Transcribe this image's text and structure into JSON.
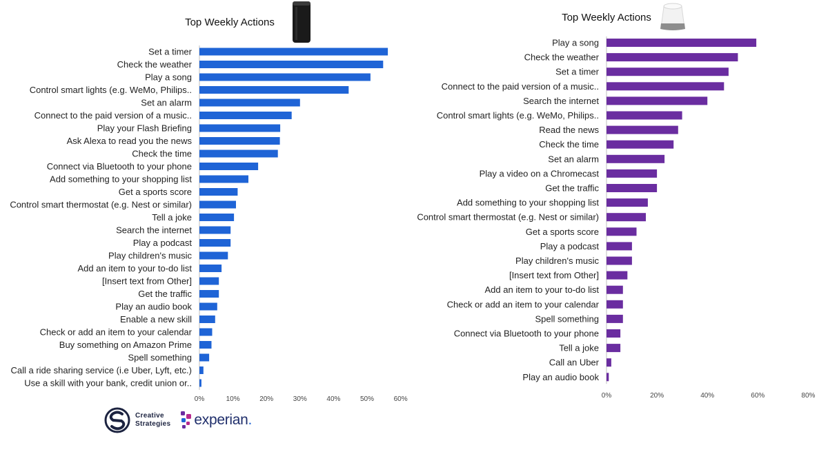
{
  "chart_data": [
    {
      "type": "bar",
      "orientation": "horizontal",
      "title": "Top Weekly Actions",
      "device_icon": "amazon-echo-icon",
      "color": "#1f64d6",
      "xlim": [
        0,
        60
      ],
      "ticks": [
        "0%",
        "10%",
        "20%",
        "30%",
        "40%",
        "50%",
        "60%"
      ],
      "tick_values": [
        0,
        10,
        20,
        30,
        40,
        50,
        60
      ],
      "categories": [
        "Set a timer",
        "Check the weather",
        "Play a song",
        "Control smart lights (e.g. WeMo, Philips..",
        "Set an alarm",
        "Connect to the paid version of a music..",
        "Play your Flash Briefing",
        "Ask Alexa to read you the news",
        "Check the time",
        "Connect via Bluetooth to your phone",
        "Add something to your shopping list",
        "Get a sports score",
        "Control smart thermostat (e.g. Nest or similar)",
        "Tell a joke",
        "Search the internet",
        "Play a podcast",
        "Play children's music",
        "Add an item to your to-do list",
        "[Insert text from Other]",
        "Get the traffic",
        "Play an audio book",
        "Enable a new skill",
        "Check or add an item to your calendar",
        "Buy something on Amazon Prime",
        "Spell something",
        "Call a ride sharing service (i.e Uber, Lyft, etc.)",
        "Use a skill with your bank, credit union or.."
      ],
      "values": [
        56.2,
        54.8,
        51.0,
        44.5,
        30.0,
        27.5,
        24.1,
        24.0,
        23.4,
        17.5,
        14.6,
        11.4,
        10.9,
        10.3,
        9.3,
        9.3,
        8.5,
        6.6,
        5.8,
        5.8,
        5.3,
        4.7,
        3.8,
        3.6,
        2.9,
        1.2,
        0.6
      ]
    },
    {
      "type": "bar",
      "orientation": "horizontal",
      "title": "Top Weekly Actions",
      "device_icon": "google-home-icon",
      "color": "#6a2da0",
      "xlim": [
        0,
        80
      ],
      "ticks": [
        "0%",
        "20%",
        "40%",
        "60%",
        "80%"
      ],
      "tick_values": [
        0,
        20,
        40,
        60,
        80
      ],
      "categories": [
        "Play a song",
        "Check the weather",
        "Set a timer",
        "Connect to the paid version of a music..",
        "Search the internet",
        "Control smart lights (e.g. WeMo, Philips..",
        "Read the news",
        "Check the time",
        "Set an alarm",
        "Play a video on a Chromecast",
        "Get the traffic",
        "Add something to your shopping list",
        "Control smart thermostat (e.g. Nest or similar)",
        "Get a sports score",
        "Play a podcast",
        "Play children's music",
        "[Insert text from Other]",
        "Add an item to your to-do list",
        "Check or add an item to your calendar",
        "Spell something",
        "Connect via Bluetooth to your phone",
        "Tell a joke",
        "Call an Uber",
        "Play an audio book"
      ],
      "values": [
        59.4,
        52.1,
        48.4,
        46.6,
        40.0,
        30.0,
        28.4,
        26.6,
        23.0,
        20.0,
        20.0,
        16.4,
        15.6,
        11.9,
        10.1,
        10.1,
        8.3,
        6.5,
        6.5,
        6.5,
        5.5,
        5.5,
        1.9,
        0.9
      ]
    }
  ],
  "logos": {
    "creative_strategies": {
      "line1": "Creative",
      "line2": "Strategies"
    },
    "experian": {
      "word": "experian",
      "dot": "."
    }
  }
}
